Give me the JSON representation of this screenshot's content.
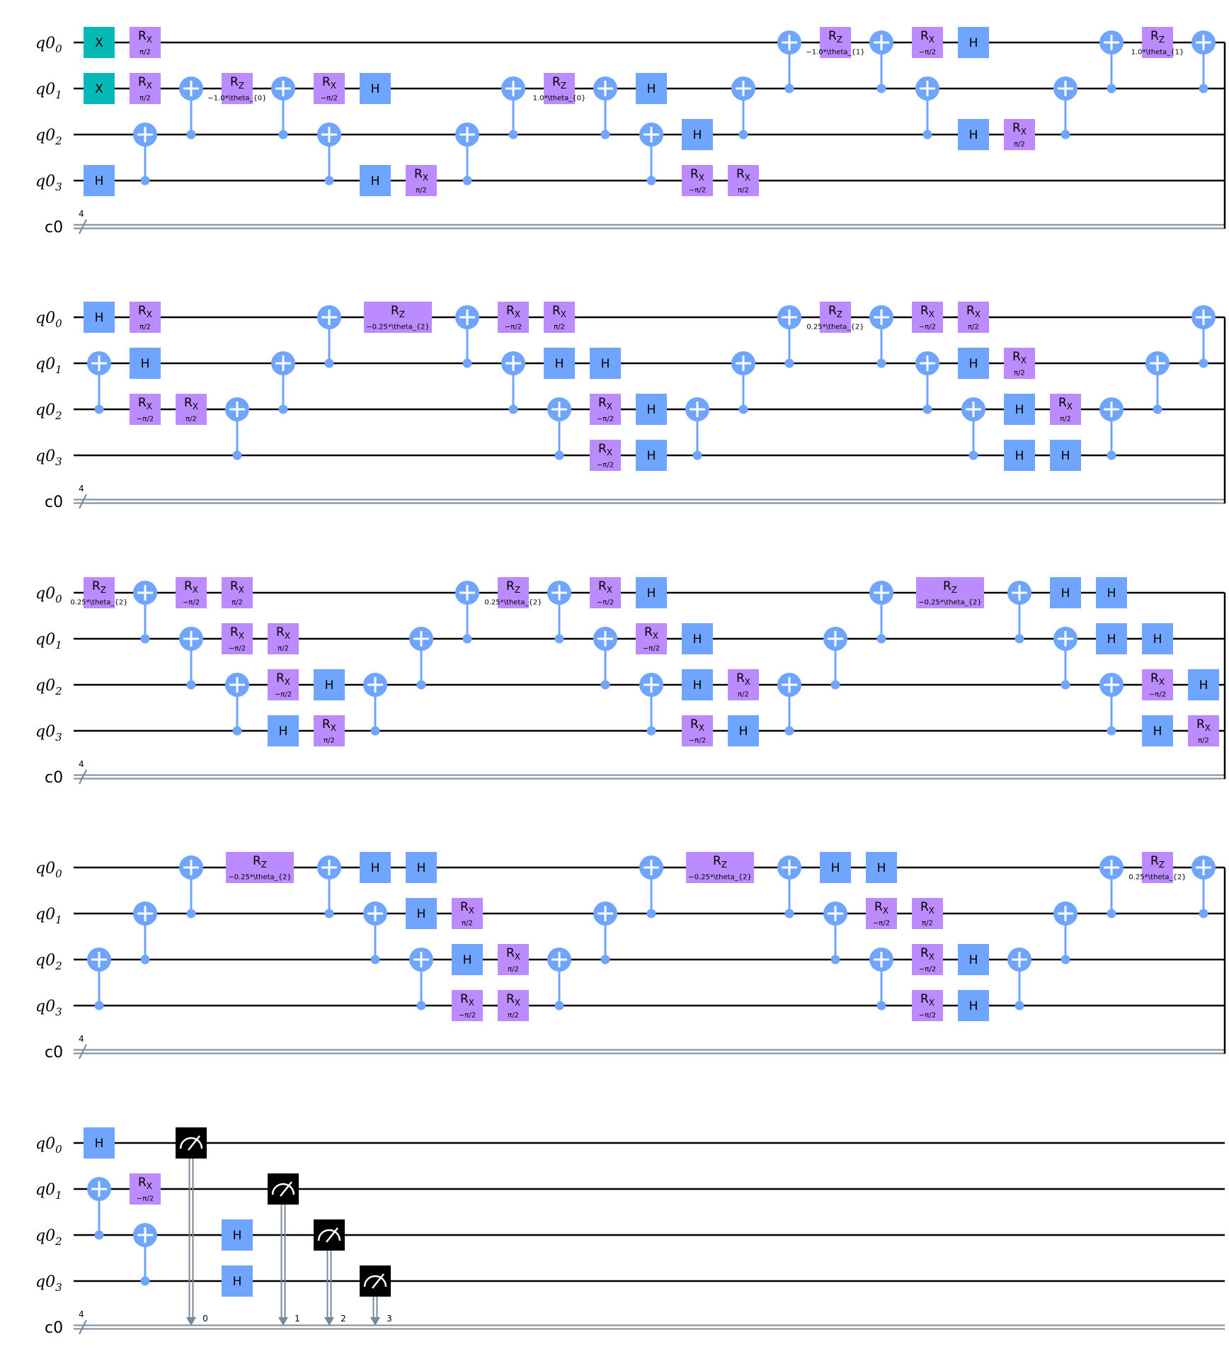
{
  "colors": {
    "x_gate": "#05BAB6",
    "h_gate": "#6FA4FF",
    "cx": "#6FA4FF",
    "rotation": "#BB8BFF",
    "measure": "#000000",
    "classical_wire": "#778899"
  },
  "wires": {
    "qubits": [
      {
        "base": "q0",
        "sub": "0"
      },
      {
        "base": "q0",
        "sub": "1"
      },
      {
        "base": "q0",
        "sub": "2"
      },
      {
        "base": "q0",
        "sub": "3"
      }
    ],
    "classical": "c0",
    "classical_width": "4"
  },
  "labels": {
    "H": "H",
    "X": "X",
    "RX": "R",
    "RX_sub": "X",
    "RZ": "R",
    "RZ_sub": "Z"
  },
  "params": {
    "pi2": "π/2",
    "mpi2": "−π/2",
    "t0m": "−1.0*\\theta_{0}",
    "t0p": "1.0*\\theta_{0}",
    "t1m": "−1.0*\\theta_{1}",
    "t1p": "1.0*\\theta_{1}",
    "t2m": "−0.25*\\theta_{2}",
    "t2p": "0.25*\\theta_{2}"
  },
  "rows": [
    {
      "ops": [
        {
          "t": "X",
          "q": 0,
          "x": 140
        },
        {
          "t": "RX",
          "q": 0,
          "x": 205,
          "p": "pi2"
        },
        {
          "t": "X",
          "q": 1,
          "x": 140
        },
        {
          "t": "RX",
          "q": 1,
          "x": 205,
          "p": "pi2"
        },
        {
          "t": "H",
          "q": 3,
          "x": 140
        },
        {
          "t": "CX",
          "c": 3,
          "tg": 2,
          "x": 205
        },
        {
          "t": "CX",
          "c": 2,
          "tg": 1,
          "x": 270
        },
        {
          "t": "RZ",
          "q": 1,
          "x": 335,
          "p": "t0m"
        },
        {
          "t": "CX",
          "c": 2,
          "tg": 1,
          "x": 400
        },
        {
          "t": "RX",
          "q": 1,
          "x": 465,
          "p": "mpi2"
        },
        {
          "t": "H",
          "q": 1,
          "x": 530
        },
        {
          "t": "CX",
          "c": 3,
          "tg": 2,
          "x": 465
        },
        {
          "t": "H",
          "q": 3,
          "x": 530
        },
        {
          "t": "RX",
          "q": 3,
          "x": 595,
          "p": "pi2"
        },
        {
          "t": "CX",
          "c": 3,
          "tg": 2,
          "x": 660
        },
        {
          "t": "CX",
          "c": 2,
          "tg": 1,
          "x": 725
        },
        {
          "t": "RZ",
          "q": 1,
          "x": 790,
          "p": "t0p"
        },
        {
          "t": "CX",
          "c": 2,
          "tg": 1,
          "x": 855
        },
        {
          "t": "H",
          "q": 1,
          "x": 920
        },
        {
          "t": "CX",
          "c": 3,
          "tg": 2,
          "x": 920
        },
        {
          "t": "H",
          "q": 2,
          "x": 985
        },
        {
          "t": "RX",
          "q": 3,
          "x": 985,
          "p": "mpi2"
        },
        {
          "t": "RX",
          "q": 3,
          "x": 1050,
          "p": "pi2"
        },
        {
          "t": "CX",
          "c": 2,
          "tg": 1,
          "x": 1050
        },
        {
          "t": "CX",
          "c": 1,
          "tg": 0,
          "x": 1115
        },
        {
          "t": "RZ",
          "q": 0,
          "x": 1180,
          "p": "t1m"
        },
        {
          "t": "CX",
          "c": 1,
          "tg": 0,
          "x": 1245
        },
        {
          "t": "RX",
          "q": 0,
          "x": 1310,
          "p": "mpi2"
        },
        {
          "t": "H",
          "q": 0,
          "x": 1375
        },
        {
          "t": "CX",
          "c": 2,
          "tg": 1,
          "x": 1310
        },
        {
          "t": "H",
          "q": 2,
          "x": 1375
        },
        {
          "t": "RX",
          "q": 2,
          "x": 1440,
          "p": "pi2"
        },
        {
          "t": "CX",
          "c": 2,
          "tg": 1,
          "x": 1505
        },
        {
          "t": "CX",
          "c": 1,
          "tg": 0,
          "x": 1570
        },
        {
          "t": "RZ",
          "q": 0,
          "x": 1635,
          "p": "t1p"
        },
        {
          "t": "CX",
          "c": 1,
          "tg": 0,
          "x": 1700
        }
      ]
    },
    {
      "ops": [
        {
          "t": "H",
          "q": 0,
          "x": 140
        },
        {
          "t": "RX",
          "q": 0,
          "x": 205,
          "p": "pi2"
        },
        {
          "t": "CX",
          "c": 2,
          "tg": 1,
          "x": 140
        },
        {
          "t": "H",
          "q": 1,
          "x": 205
        },
        {
          "t": "RX",
          "q": 2,
          "x": 205,
          "p": "mpi2"
        },
        {
          "t": "RX",
          "q": 2,
          "x": 270,
          "p": "pi2"
        },
        {
          "t": "CX",
          "c": 3,
          "tg": 2,
          "x": 335
        },
        {
          "t": "CX",
          "c": 2,
          "tg": 1,
          "x": 400
        },
        {
          "t": "CX",
          "c": 1,
          "tg": 0,
          "x": 465
        },
        {
          "t": "RZ",
          "q": 0,
          "x": 562,
          "p": "t2m",
          "w": 96
        },
        {
          "t": "CX",
          "c": 1,
          "tg": 0,
          "x": 660
        },
        {
          "t": "RX",
          "q": 0,
          "x": 725,
          "p": "mpi2"
        },
        {
          "t": "RX",
          "q": 0,
          "x": 790,
          "p": "pi2"
        },
        {
          "t": "CX",
          "c": 2,
          "tg": 1,
          "x": 725
        },
        {
          "t": "H",
          "q": 1,
          "x": 790
        },
        {
          "t": "H",
          "q": 1,
          "x": 855
        },
        {
          "t": "CX",
          "c": 3,
          "tg": 2,
          "x": 790
        },
        {
          "t": "RX",
          "q": 2,
          "x": 855,
          "p": "mpi2"
        },
        {
          "t": "RX",
          "q": 3,
          "x": 855,
          "p": "mpi2"
        },
        {
          "t": "H",
          "q": 2,
          "x": 920
        },
        {
          "t": "H",
          "q": 3,
          "x": 920
        },
        {
          "t": "CX",
          "c": 3,
          "tg": 2,
          "x": 985
        },
        {
          "t": "CX",
          "c": 2,
          "tg": 1,
          "x": 1050
        },
        {
          "t": "CX",
          "c": 1,
          "tg": 0,
          "x": 1115
        },
        {
          "t": "RZ",
          "q": 0,
          "x": 1180,
          "p": "t2p"
        },
        {
          "t": "CX",
          "c": 1,
          "tg": 0,
          "x": 1245
        },
        {
          "t": "RX",
          "q": 0,
          "x": 1310,
          "p": "mpi2"
        },
        {
          "t": "RX",
          "q": 0,
          "x": 1375,
          "p": "pi2"
        },
        {
          "t": "CX",
          "c": 2,
          "tg": 1,
          "x": 1310
        },
        {
          "t": "H",
          "q": 1,
          "x": 1375
        },
        {
          "t": "RX",
          "q": 1,
          "x": 1440,
          "p": "pi2"
        },
        {
          "t": "CX",
          "c": 3,
          "tg": 2,
          "x": 1375
        },
        {
          "t": "H",
          "q": 2,
          "x": 1440
        },
        {
          "t": "H",
          "q": 3,
          "x": 1440
        },
        {
          "t": "RX",
          "q": 2,
          "x": 1505,
          "p": "pi2"
        },
        {
          "t": "H",
          "q": 3,
          "x": 1505
        },
        {
          "t": "CX",
          "c": 3,
          "tg": 2,
          "x": 1570
        },
        {
          "t": "CX",
          "c": 2,
          "tg": 1,
          "x": 1635
        },
        {
          "t": "CX",
          "c": 1,
          "tg": 0,
          "x": 1700
        }
      ]
    },
    {
      "ops": [
        {
          "t": "RZ",
          "q": 0,
          "x": 140,
          "p": "t2p"
        },
        {
          "t": "CX",
          "c": 1,
          "tg": 0,
          "x": 205
        },
        {
          "t": "RX",
          "q": 0,
          "x": 270,
          "p": "mpi2"
        },
        {
          "t": "RX",
          "q": 0,
          "x": 335,
          "p": "pi2"
        },
        {
          "t": "CX",
          "c": 2,
          "tg": 1,
          "x": 270
        },
        {
          "t": "RX",
          "q": 1,
          "x": 335,
          "p": "mpi2"
        },
        {
          "t": "RX",
          "q": 1,
          "x": 400,
          "p": "pi2"
        },
        {
          "t": "CX",
          "c": 3,
          "tg": 2,
          "x": 335
        },
        {
          "t": "RX",
          "q": 2,
          "x": 400,
          "p": "mpi2"
        },
        {
          "t": "H",
          "q": 2,
          "x": 465
        },
        {
          "t": "H",
          "q": 3,
          "x": 400
        },
        {
          "t": "RX",
          "q": 3,
          "x": 465,
          "p": "pi2"
        },
        {
          "t": "CX",
          "c": 3,
          "tg": 2,
          "x": 530
        },
        {
          "t": "CX",
          "c": 2,
          "tg": 1,
          "x": 595
        },
        {
          "t": "CX",
          "c": 1,
          "tg": 0,
          "x": 660
        },
        {
          "t": "RZ",
          "q": 0,
          "x": 725,
          "p": "t2p"
        },
        {
          "t": "CX",
          "c": 1,
          "tg": 0,
          "x": 790
        },
        {
          "t": "RX",
          "q": 0,
          "x": 855,
          "p": "mpi2"
        },
        {
          "t": "H",
          "q": 0,
          "x": 920
        },
        {
          "t": "CX",
          "c": 2,
          "tg": 1,
          "x": 855
        },
        {
          "t": "RX",
          "q": 1,
          "x": 920,
          "p": "mpi2"
        },
        {
          "t": "H",
          "q": 1,
          "x": 985
        },
        {
          "t": "CX",
          "c": 3,
          "tg": 2,
          "x": 920
        },
        {
          "t": "H",
          "q": 2,
          "x": 985
        },
        {
          "t": "RX",
          "q": 2,
          "x": 1050,
          "p": "pi2"
        },
        {
          "t": "RX",
          "q": 3,
          "x": 985,
          "p": "mpi2"
        },
        {
          "t": "H",
          "q": 3,
          "x": 1050
        },
        {
          "t": "CX",
          "c": 3,
          "tg": 2,
          "x": 1115
        },
        {
          "t": "CX",
          "c": 2,
          "tg": 1,
          "x": 1180
        },
        {
          "t": "CX",
          "c": 1,
          "tg": 0,
          "x": 1245
        },
        {
          "t": "RZ",
          "q": 0,
          "x": 1342,
          "p": "t2m",
          "w": 96
        },
        {
          "t": "CX",
          "c": 1,
          "tg": 0,
          "x": 1440
        },
        {
          "t": "H",
          "q": 0,
          "x": 1505
        },
        {
          "t": "H",
          "q": 0,
          "x": 1570
        },
        {
          "t": "CX",
          "c": 2,
          "tg": 1,
          "x": 1505
        },
        {
          "t": "H",
          "q": 1,
          "x": 1570
        },
        {
          "t": "H",
          "q": 1,
          "x": 1635
        },
        {
          "t": "CX",
          "c": 3,
          "tg": 2,
          "x": 1570
        },
        {
          "t": "RX",
          "q": 2,
          "x": 1635,
          "p": "mpi2"
        },
        {
          "t": "H",
          "q": 2,
          "x": 1700
        },
        {
          "t": "H",
          "q": 3,
          "x": 1635
        },
        {
          "t": "RX",
          "q": 3,
          "x": 1700,
          "p": "pi2"
        }
      ]
    },
    {
      "ops": [
        {
          "t": "CX",
          "c": 3,
          "tg": 2,
          "x": 140
        },
        {
          "t": "CX",
          "c": 2,
          "tg": 1,
          "x": 205
        },
        {
          "t": "CX",
          "c": 1,
          "tg": 0,
          "x": 270
        },
        {
          "t": "RZ",
          "q": 0,
          "x": 367,
          "p": "t2m",
          "w": 96
        },
        {
          "t": "CX",
          "c": 1,
          "tg": 0,
          "x": 465
        },
        {
          "t": "H",
          "q": 0,
          "x": 530
        },
        {
          "t": "H",
          "q": 0,
          "x": 595
        },
        {
          "t": "CX",
          "c": 2,
          "tg": 1,
          "x": 530
        },
        {
          "t": "H",
          "q": 1,
          "x": 595
        },
        {
          "t": "RX",
          "q": 1,
          "x": 660,
          "p": "pi2"
        },
        {
          "t": "CX",
          "c": 3,
          "tg": 2,
          "x": 595
        },
        {
          "t": "H",
          "q": 2,
          "x": 660
        },
        {
          "t": "RX",
          "q": 2,
          "x": 725,
          "p": "pi2"
        },
        {
          "t": "RX",
          "q": 3,
          "x": 660,
          "p": "mpi2"
        },
        {
          "t": "RX",
          "q": 3,
          "x": 725,
          "p": "pi2"
        },
        {
          "t": "CX",
          "c": 3,
          "tg": 2,
          "x": 790
        },
        {
          "t": "CX",
          "c": 2,
          "tg": 1,
          "x": 855
        },
        {
          "t": "CX",
          "c": 1,
          "tg": 0,
          "x": 920
        },
        {
          "t": "RZ",
          "q": 0,
          "x": 1017,
          "p": "t2m",
          "w": 96
        },
        {
          "t": "CX",
          "c": 1,
          "tg": 0,
          "x": 1115
        },
        {
          "t": "H",
          "q": 0,
          "x": 1180
        },
        {
          "t": "H",
          "q": 0,
          "x": 1245
        },
        {
          "t": "CX",
          "c": 2,
          "tg": 1,
          "x": 1180
        },
        {
          "t": "RX",
          "q": 1,
          "x": 1245,
          "p": "mpi2"
        },
        {
          "t": "RX",
          "q": 1,
          "x": 1310,
          "p": "pi2"
        },
        {
          "t": "CX",
          "c": 3,
          "tg": 2,
          "x": 1245
        },
        {
          "t": "RX",
          "q": 2,
          "x": 1310,
          "p": "mpi2"
        },
        {
          "t": "H",
          "q": 2,
          "x": 1375
        },
        {
          "t": "RX",
          "q": 3,
          "x": 1310,
          "p": "mpi2"
        },
        {
          "t": "H",
          "q": 3,
          "x": 1375
        },
        {
          "t": "CX",
          "c": 3,
          "tg": 2,
          "x": 1440
        },
        {
          "t": "CX",
          "c": 2,
          "tg": 1,
          "x": 1505
        },
        {
          "t": "CX",
          "c": 1,
          "tg": 0,
          "x": 1570
        },
        {
          "t": "RZ",
          "q": 0,
          "x": 1635,
          "p": "t2p"
        },
        {
          "t": "CX",
          "c": 1,
          "tg": 0,
          "x": 1700
        }
      ]
    },
    {
      "ops": [
        {
          "t": "H",
          "q": 0,
          "x": 140
        },
        {
          "t": "CX",
          "c": 2,
          "tg": 1,
          "x": 140
        },
        {
          "t": "RX",
          "q": 1,
          "x": 205,
          "p": "mpi2"
        },
        {
          "t": "CX",
          "c": 3,
          "tg": 2,
          "x": 205
        },
        {
          "t": "M",
          "q": 0,
          "x": 270,
          "bit": "0"
        },
        {
          "t": "H",
          "q": 2,
          "x": 335
        },
        {
          "t": "H",
          "q": 3,
          "x": 335
        },
        {
          "t": "M",
          "q": 1,
          "x": 400,
          "bit": "1"
        },
        {
          "t": "M",
          "q": 2,
          "x": 465,
          "bit": "2"
        },
        {
          "t": "M",
          "q": 3,
          "x": 530,
          "bit": "3"
        }
      ]
    }
  ]
}
